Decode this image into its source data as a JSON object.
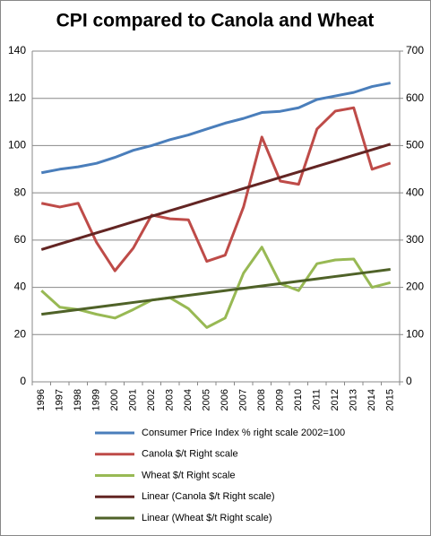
{
  "chart_data": {
    "type": "line",
    "title": "CPI compared to Canola and Wheat",
    "categories": [
      "1996",
      "1997",
      "1998",
      "1999",
      "2000",
      "2001",
      "2002",
      "2003",
      "2004",
      "2005",
      "2006",
      "2007",
      "2008",
      "2009",
      "2010",
      "2011",
      "2012",
      "2013",
      "2014",
      "2015"
    ],
    "ylim": [
      0,
      140
    ],
    "yticks": [
      0,
      20,
      40,
      60,
      80,
      100,
      120,
      140
    ],
    "y2lim": [
      0,
      700
    ],
    "y2ticks": [
      0,
      100,
      200,
      300,
      400,
      500,
      600,
      700
    ],
    "grid": true,
    "legend": "bottom",
    "series": [
      {
        "name": "Consumer Price Index % right scale 2002=100",
        "color": "#4a7ebb",
        "values": [
          88.5,
          90,
          91,
          92.5,
          95,
          98,
          100,
          102.5,
          104.5,
          107,
          109.5,
          111.5,
          114,
          114.5,
          116,
          119.5,
          121,
          122.5,
          125,
          126.5
        ]
      },
      {
        "name": "Canola $/t Right scale",
        "color": "#be4b48",
        "axis": "y2",
        "values": [
          378,
          370,
          378,
          295,
          235,
          283,
          353,
          345,
          343,
          255,
          268,
          370,
          518,
          425,
          418,
          535,
          573,
          580,
          450,
          463
        ]
      },
      {
        "name": "Wheat $/t Right scale",
        "color": "#98b954",
        "axis": "y2",
        "values": [
          193,
          158,
          153,
          143,
          135,
          153,
          173,
          178,
          155,
          115,
          135,
          230,
          285,
          208,
          193,
          250,
          258,
          260,
          200,
          210
        ]
      },
      {
        "name": "Linear (Canola $/t Right scale)",
        "color": "#632523",
        "axis": "y2",
        "values": [
          280,
          291.7,
          303.5,
          315.2,
          326.9,
          338.7,
          350.4,
          362.2,
          373.9,
          385.6,
          397.4,
          409.1,
          420.8,
          432.6,
          444.3,
          456.1,
          467.8,
          479.5,
          491.3,
          503
        ]
      },
      {
        "name": "Linear (Wheat $/t Right scale)",
        "color": "#4f6228",
        "axis": "y2",
        "values": [
          143,
          148,
          153,
          158,
          163,
          168,
          173,
          178,
          183,
          188,
          193,
          198,
          203,
          208,
          213,
          218,
          223,
          228,
          233,
          238
        ]
      }
    ]
  }
}
